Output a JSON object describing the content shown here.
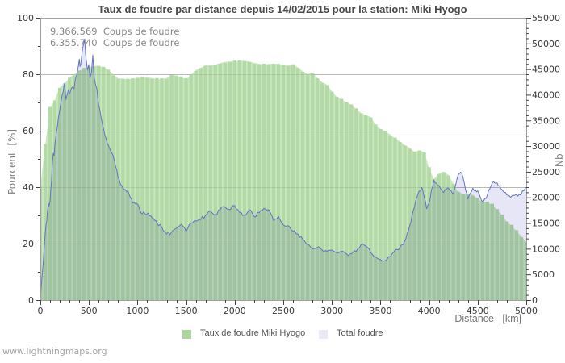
{
  "title": "Taux de foudre par distance depuis 14/02/2015 pour la station: Miki Hyogo",
  "annotations": [
    "9.366.569  Coups de foudre",
    "6.355.740  Coups de foudre"
  ],
  "watermark": "www.lightningmaps.org",
  "colors": {
    "background": "#ffffff",
    "grid": "#c9c9c9",
    "grid_over_series": "rgba(120,120,120,0.20)",
    "border": "#a0a0a0",
    "tick": "#444444",
    "tick_label": "#3a3a3a",
    "green_bar": "#b2d9a6",
    "green_light": "#cbe7c0",
    "blue_line": "#6573c5",
    "lavender_fill": "#e6e6f6"
  },
  "chart_data": {
    "type": "area",
    "x_axis": {
      "label": "Distance   [km]",
      "min": 0,
      "max": 5000,
      "major_step": 500,
      "minor_step": 100,
      "ticks": [
        0,
        500,
        1000,
        1500,
        2000,
        2500,
        3000,
        3500,
        4000,
        4500,
        5000
      ]
    },
    "y_left": {
      "label": "Pourcent  [%]",
      "min": 0,
      "max": 100,
      "major_step": 20,
      "minor_step": 10,
      "ticks": [
        0,
        20,
        40,
        60,
        80,
        100
      ]
    },
    "y_right": {
      "label": "Nb",
      "min": 0,
      "max": 55000,
      "major_step": 5000,
      "minor_step": 1000,
      "ticks": [
        0,
        5000,
        10000,
        15000,
        20000,
        25000,
        30000,
        35000,
        40000,
        45000,
        50000,
        55000
      ]
    },
    "grid_pct": [
      20,
      40,
      60,
      80
    ],
    "series": [
      {
        "name": "Taux de foudre Miki Hyogo",
        "axis": "left",
        "unit": "percent",
        "step_km": 50,
        "values": [
          40,
          55,
          68,
          71,
          75.4,
          76.8,
          78.7,
          80.1,
          81.2,
          82,
          82.5,
          83,
          82.9,
          82.5,
          81.5,
          80,
          78.6,
          78.4,
          78.2,
          78.4,
          78.6,
          78.8,
          79,
          78.6,
          78.3,
          78.2,
          78.7,
          79.8,
          79.5,
          78.8,
          78.3,
          79.5,
          81.5,
          82.3,
          83,
          83.2,
          83.4,
          83.9,
          84.4,
          84.5,
          84.5,
          84.6,
          84.8,
          84.5,
          84.1,
          83.7,
          83.4,
          83.6,
          83.8,
          83.5,
          83.1,
          83.2,
          83.4,
          82.5,
          81,
          80.1,
          80.5,
          78.7,
          77.2,
          76.3,
          73.9,
          72,
          71,
          70.1,
          69.1,
          67.7,
          66.3,
          65.3,
          64.9,
          62,
          60.6,
          59.6,
          58.7,
          57.2,
          56.3,
          54.9,
          54,
          52.5,
          52.9,
          52.5,
          46.8,
          42.8,
          44.9,
          45.3,
          44.4,
          41.3,
          38.2,
          37.7,
          37.7,
          37.3,
          35.8,
          34.9,
          34.4,
          33.9,
          32,
          30.1,
          27.7,
          26.3,
          24.4,
          22.5,
          20.6
        ]
      },
      {
        "name": "Total foudre",
        "axis": "right",
        "unit": "count",
        "points": [
          [
            0,
            300
          ],
          [
            25,
            6100
          ],
          [
            40,
            10400
          ],
          [
            50,
            12870
          ],
          [
            58,
            14700
          ],
          [
            66,
            15300
          ],
          [
            75,
            17600
          ],
          [
            83,
            18800
          ],
          [
            90,
            18300
          ],
          [
            100,
            19200
          ],
          [
            108,
            21800
          ],
          [
            115,
            23000
          ],
          [
            125,
            27000
          ],
          [
            133,
            28600
          ],
          [
            141,
            28100
          ],
          [
            150,
            30500
          ],
          [
            166,
            32800
          ],
          [
            175,
            33800
          ],
          [
            185,
            35500
          ],
          [
            196,
            36600
          ],
          [
            208,
            38000
          ],
          [
            225,
            40000
          ],
          [
            235,
            40600
          ],
          [
            242,
            41500
          ],
          [
            249,
            42240
          ],
          [
            263,
            39050
          ],
          [
            280,
            40300
          ],
          [
            290,
            41000
          ],
          [
            297,
            40200
          ],
          [
            305,
            40400
          ],
          [
            320,
            41300
          ],
          [
            330,
            41500
          ],
          [
            346,
            41170
          ],
          [
            360,
            43000
          ],
          [
            374,
            43800
          ],
          [
            390,
            45500
          ],
          [
            401,
            46930
          ],
          [
            408,
            45500
          ],
          [
            415,
            45880
          ],
          [
            425,
            47500
          ],
          [
            434,
            49030
          ],
          [
            445,
            49800
          ],
          [
            457,
            50870
          ],
          [
            465,
            48000
          ],
          [
            471,
            46930
          ],
          [
            485,
            44830
          ],
          [
            498,
            45880
          ],
          [
            512,
            43280
          ],
          [
            526,
            44330
          ],
          [
            540,
            47740
          ],
          [
            547,
            45200
          ],
          [
            554,
            43280
          ],
          [
            568,
            41960
          ],
          [
            581,
            41170
          ],
          [
            600,
            38000
          ],
          [
            612,
            37100
          ],
          [
            625,
            35500
          ],
          [
            640,
            34100
          ],
          [
            650,
            33310
          ],
          [
            675,
            31500
          ],
          [
            700,
            30170
          ],
          [
            725,
            29000
          ],
          [
            750,
            28080
          ],
          [
            775,
            26000
          ],
          [
            800,
            23880
          ],
          [
            825,
            22500
          ],
          [
            850,
            21790
          ],
          [
            875,
            21500
          ],
          [
            900,
            21270
          ],
          [
            925,
            20000
          ],
          [
            950,
            18910
          ],
          [
            975,
            18800
          ],
          [
            1000,
            18650
          ],
          [
            1025,
            17500
          ],
          [
            1050,
            16810
          ],
          [
            1075,
            16900
          ],
          [
            1100,
            16810
          ],
          [
            1125,
            16400
          ],
          [
            1150,
            16030
          ],
          [
            1175,
            15500
          ],
          [
            1200,
            14980
          ],
          [
            1250,
            14190
          ],
          [
            1300,
            12900
          ],
          [
            1350,
            13200
          ],
          [
            1400,
            13970
          ],
          [
            1450,
            14760
          ],
          [
            1500,
            13400
          ],
          [
            1550,
            15000
          ],
          [
            1600,
            15400
          ],
          [
            1650,
            15700
          ],
          [
            1700,
            16550
          ],
          [
            1750,
            17300
          ],
          [
            1800,
            16600
          ],
          [
            1850,
            17600
          ],
          [
            1900,
            18130
          ],
          [
            1950,
            17600
          ],
          [
            2000,
            18380
          ],
          [
            2050,
            17070
          ],
          [
            2100,
            16550
          ],
          [
            2150,
            17600
          ],
          [
            2200,
            16300
          ],
          [
            2250,
            17000
          ],
          [
            2300,
            17850
          ],
          [
            2350,
            17600
          ],
          [
            2400,
            15500
          ],
          [
            2450,
            16300
          ],
          [
            2500,
            14700
          ],
          [
            2550,
            14500
          ],
          [
            2600,
            13400
          ],
          [
            2650,
            12880
          ],
          [
            2700,
            11830
          ],
          [
            2750,
            10790
          ],
          [
            2800,
            10000
          ],
          [
            2850,
            10260
          ],
          [
            2900,
            9740
          ],
          [
            2950,
            9500
          ],
          [
            3000,
            9740
          ],
          [
            3050,
            9220
          ],
          [
            3100,
            9480
          ],
          [
            3150,
            9000
          ],
          [
            3200,
            9000
          ],
          [
            3250,
            9480
          ],
          [
            3300,
            10800
          ],
          [
            3350,
            10530
          ],
          [
            3400,
            9220
          ],
          [
            3450,
            8430
          ],
          [
            3500,
            7900
          ],
          [
            3550,
            7650
          ],
          [
            3600,
            8430
          ],
          [
            3650,
            9740
          ],
          [
            3700,
            10260
          ],
          [
            3750,
            11580
          ],
          [
            3775,
            13000
          ],
          [
            3800,
            14460
          ],
          [
            3825,
            16500
          ],
          [
            3850,
            18120
          ],
          [
            3875,
            20000
          ],
          [
            3900,
            21270
          ],
          [
            3925,
            21950
          ],
          [
            3950,
            20000
          ],
          [
            3975,
            17800
          ],
          [
            4000,
            18910
          ],
          [
            4025,
            21500
          ],
          [
            4050,
            23350
          ],
          [
            4075,
            22800
          ],
          [
            4100,
            22320
          ],
          [
            4125,
            21500
          ],
          [
            4150,
            21000
          ],
          [
            4175,
            21400
          ],
          [
            4200,
            21800
          ],
          [
            4225,
            21300
          ],
          [
            4250,
            20740
          ],
          [
            4275,
            22500
          ],
          [
            4300,
            24400
          ],
          [
            4325,
            24900
          ],
          [
            4350,
            23870
          ],
          [
            4375,
            21500
          ],
          [
            4400,
            19690
          ],
          [
            4425,
            20800
          ],
          [
            4450,
            21800
          ],
          [
            4475,
            21500
          ],
          [
            4500,
            21270
          ],
          [
            4525,
            20200
          ],
          [
            4550,
            19200
          ],
          [
            4575,
            19800
          ],
          [
            4600,
            20480
          ],
          [
            4625,
            21700
          ],
          [
            4650,
            22830
          ],
          [
            4675,
            22830
          ],
          [
            4700,
            22830
          ],
          [
            4725,
            22200
          ],
          [
            4750,
            21530
          ],
          [
            4775,
            21000
          ],
          [
            4800,
            20480
          ],
          [
            4825,
            20350
          ],
          [
            4850,
            20220
          ],
          [
            4875,
            20350
          ],
          [
            4900,
            20480
          ],
          [
            4925,
            20600
          ],
          [
            4950,
            20740
          ],
          [
            4975,
            21300
          ],
          [
            5000,
            21950
          ]
        ]
      }
    ],
    "legend": [
      {
        "label": "Taux de foudre Miki Hyogo",
        "swatch": "#abd79e"
      },
      {
        "label": "Total foudre",
        "swatch": "#e9e9f8"
      }
    ]
  }
}
